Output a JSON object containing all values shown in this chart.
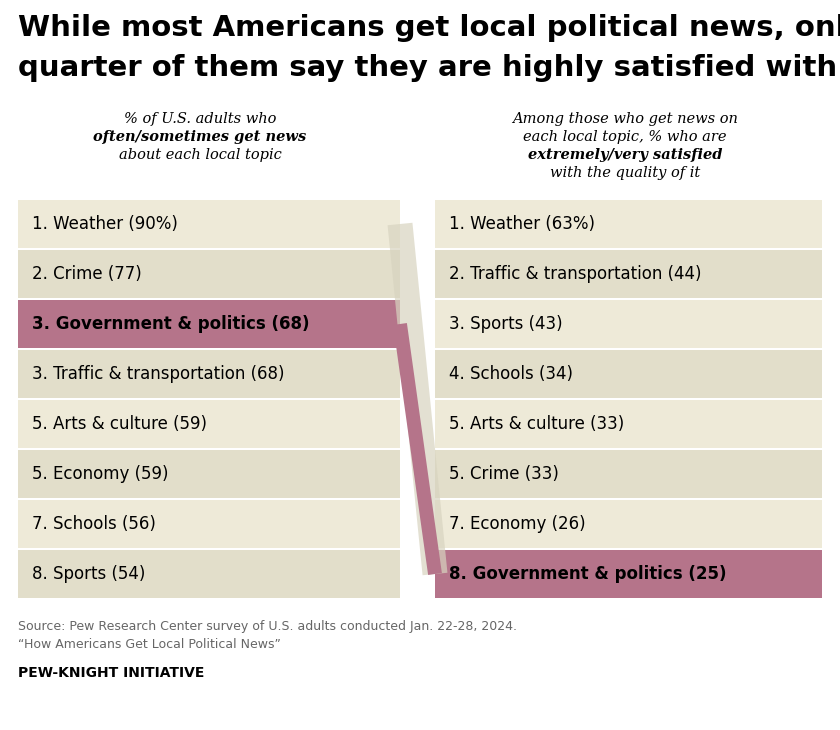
{
  "title_line1": "While most Americans get local political news, only a",
  "title_line2": "quarter of them say they are highly satisfied with it",
  "left_header_lines": [
    {
      "text": "% of U.S. adults who",
      "bold": false
    },
    {
      "text": "often/sometimes get news",
      "bold": true
    },
    {
      "text": "about each local topic",
      "bold": false
    }
  ],
  "right_header_lines": [
    {
      "text": "Among those who get news on",
      "bold": false
    },
    {
      "text": "each local topic, % who are",
      "bold": false
    },
    {
      "text": "extremely/very satisfied",
      "bold": true
    },
    {
      "text": "with the quality of it",
      "bold": false
    }
  ],
  "left_items": [
    {
      "rank": "1.",
      "text": "Weather (90%)",
      "highlight": false
    },
    {
      "rank": "2.",
      "text": "Crime (77)",
      "highlight": false
    },
    {
      "rank": "3.",
      "text": "Government & politics (68)",
      "highlight": true
    },
    {
      "rank": "3.",
      "text": "Traffic & transportation (68)",
      "highlight": false
    },
    {
      "rank": "5.",
      "text": "Arts & culture (59)",
      "highlight": false
    },
    {
      "rank": "5.",
      "text": "Economy (59)",
      "highlight": false
    },
    {
      "rank": "7.",
      "text": "Schools (56)",
      "highlight": false
    },
    {
      "rank": "8.",
      "text": "Sports (54)",
      "highlight": false
    }
  ],
  "right_items": [
    {
      "rank": "1.",
      "text": "Weather (63%)",
      "highlight": false
    },
    {
      "rank": "2.",
      "text": "Traffic & transportation (44)",
      "highlight": false
    },
    {
      "rank": "3.",
      "text": "Sports (43)",
      "highlight": false
    },
    {
      "rank": "4.",
      "text": "Schools (34)",
      "highlight": false
    },
    {
      "rank": "5.",
      "text": "Arts & culture (33)",
      "highlight": false
    },
    {
      "rank": "5.",
      "text": "Crime (33)",
      "highlight": false
    },
    {
      "rank": "7.",
      "text": "Economy (26)",
      "highlight": false
    },
    {
      "rank": "8.",
      "text": "Government & politics (25)",
      "highlight": true
    }
  ],
  "highlight_color": "#b5748a",
  "bg_color_light": "#eeead8",
  "bg_color_dark": "#e2deca",
  "separator_color": "#ffffff",
  "cross_line_color": "#b5748a",
  "cross_bg_line_color": "#d8d4c0",
  "source_line1": "Source: Pew Research Center survey of U.S. adults conducted Jan. 22-28, 2024.",
  "source_line2": "“How Americans Get Local Political News”",
  "footer": "PEW-KNIGHT INITIATIVE"
}
